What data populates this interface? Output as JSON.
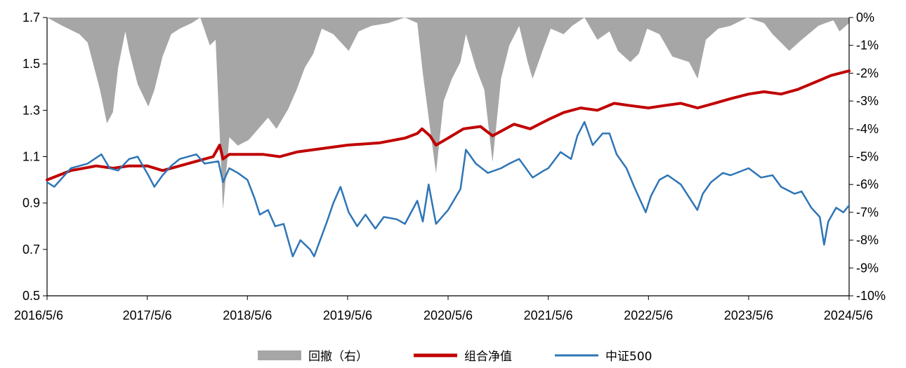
{
  "chart_data": {
    "type": "line",
    "title": "",
    "xlabel": "",
    "ylabel": "",
    "ylim": [
      0.5,
      1.7
    ],
    "y2lim": [
      -10,
      0
    ],
    "x_range": [
      "2016/5/6",
      "2024/5/6"
    ],
    "x_tick_labels": [
      "2016/5/6",
      "2017/5/6",
      "2018/5/6",
      "2019/5/6",
      "2020/5/6",
      "2021/5/6",
      "2022/5/6",
      "2023/5/6",
      "2024/5/6"
    ],
    "y_tick_labels": [
      "0.5",
      "0.7",
      "0.9",
      "1.1",
      "1.3",
      "1.5",
      "1.7"
    ],
    "y2_tick_labels": [
      "-10%",
      "-9%",
      "-8%",
      "-7%",
      "-6%",
      "-5%",
      "-4%",
      "-3%",
      "-2%",
      "-1%",
      "0%"
    ],
    "grid": false,
    "legend_position": "bottom",
    "series": [
      {
        "name": "回撤（右）",
        "type": "area",
        "axis": "right",
        "color": "#a6a6a6",
        "points": [
          [
            "2016/5/6",
            0
          ],
          [
            "2016/7/1",
            -0.3
          ],
          [
            "2016/9/1",
            -0.6
          ],
          [
            "2016/10/1",
            -0.9
          ],
          [
            "2016/11/15",
            -2.6
          ],
          [
            "2016/12/10",
            -3.8
          ],
          [
            "2017/1/1",
            -3.4
          ],
          [
            "2017/1/20",
            -1.8
          ],
          [
            "2017/2/15",
            -0.5
          ],
          [
            "2017/3/1",
            -1.2
          ],
          [
            "2017/4/1",
            -2.4
          ],
          [
            "2017/5/10",
            -3.2
          ],
          [
            "2017/6/1",
            -2.6
          ],
          [
            "2017/7/1",
            -1.4
          ],
          [
            "2017/8/1",
            -0.6
          ],
          [
            "2017/9/1",
            -0.4
          ],
          [
            "2017/10/15",
            -0.2
          ],
          [
            "2017/11/15",
            0
          ],
          [
            "2017/12/20",
            -1.0
          ],
          [
            "2018/1/10",
            -0.8
          ],
          [
            "2018/2/6",
            -6.9
          ],
          [
            "2018/3/1",
            -4.3
          ],
          [
            "2018/4/1",
            -4.6
          ],
          [
            "2018/5/10",
            -4.4
          ],
          [
            "2018/6/15",
            -4.0
          ],
          [
            "2018/7/20",
            -3.6
          ],
          [
            "2018/8/20",
            -4.0
          ],
          [
            "2018/10/1",
            -3.3
          ],
          [
            "2018/11/1",
            -2.6
          ],
          [
            "2018/12/1",
            -1.8
          ],
          [
            "2019/1/1",
            -1.3
          ],
          [
            "2019/2/1",
            -0.4
          ],
          [
            "2019/3/15",
            -0.6
          ],
          [
            "2019/5/10",
            -1.2
          ],
          [
            "2019/6/15",
            -0.5
          ],
          [
            "2019/8/1",
            -0.3
          ],
          [
            "2019/10/1",
            -0.2
          ],
          [
            "2019/12/1",
            0
          ],
          [
            "2020/1/15",
            -0.2
          ],
          [
            "2020/2/4",
            -2.0
          ],
          [
            "2020/3/23",
            -5.6
          ],
          [
            "2020/4/20",
            -3.0
          ],
          [
            "2020/5/20",
            -2.2
          ],
          [
            "2020/6/20",
            -1.6
          ],
          [
            "2020/7/10",
            -0.6
          ],
          [
            "2020/8/15",
            -1.8
          ],
          [
            "2020/9/15",
            -2.6
          ],
          [
            "2020/10/15",
            -5.2
          ],
          [
            "2020/11/15",
            -2.2
          ],
          [
            "2020/12/15",
            -1.0
          ],
          [
            "2021/1/20",
            -0.3
          ],
          [
            "2021/2/20",
            -1.6
          ],
          [
            "2021/3/10",
            -2.2
          ],
          [
            "2021/4/15",
            -1.2
          ],
          [
            "2021/5/15",
            -0.4
          ],
          [
            "2021/7/1",
            -0.6
          ],
          [
            "2021/8/1",
            -0.3
          ],
          [
            "2021/9/15",
            0
          ],
          [
            "2021/11/1",
            -0.8
          ],
          [
            "2021/12/15",
            -0.5
          ],
          [
            "2022/1/15",
            -1.2
          ],
          [
            "2022/3/1",
            -1.6
          ],
          [
            "2022/4/1",
            -1.3
          ],
          [
            "2022/5/1",
            -0.4
          ],
          [
            "2022/6/15",
            -0.6
          ],
          [
            "2022/8/1",
            -1.4
          ],
          [
            "2022/10/1",
            -1.6
          ],
          [
            "2022/11/1",
            -2.2
          ],
          [
            "2022/12/1",
            -0.8
          ],
          [
            "2023/1/15",
            -0.4
          ],
          [
            "2023/3/1",
            -0.3
          ],
          [
            "2023/5/1",
            0
          ],
          [
            "2023/7/1",
            -0.2
          ],
          [
            "2023/8/1",
            -0.6
          ],
          [
            "2023/10/1",
            -1.2
          ],
          [
            "2023/11/15",
            -0.8
          ],
          [
            "2024/1/15",
            -0.3
          ],
          [
            "2024/2/10",
            -0.2
          ],
          [
            "2024/3/10",
            -0.1
          ],
          [
            "2024/4/1",
            -0.5
          ],
          [
            "2024/5/6",
            -0.2
          ]
        ]
      },
      {
        "name": "组合净值",
        "type": "line",
        "axis": "left",
        "color": "#c00000",
        "points": [
          [
            "2016/5/6",
            1.0
          ],
          [
            "2016/8/1",
            1.04
          ],
          [
            "2016/11/1",
            1.06
          ],
          [
            "2017/1/1",
            1.05
          ],
          [
            "2017/3/1",
            1.06
          ],
          [
            "2017/5/6",
            1.06
          ],
          [
            "2017/7/1",
            1.04
          ],
          [
            "2017/9/1",
            1.06
          ],
          [
            "2017/11/1",
            1.08
          ],
          [
            "2018/1/1",
            1.1
          ],
          [
            "2018/1/25",
            1.15
          ],
          [
            "2018/2/6",
            1.09
          ],
          [
            "2018/3/1",
            1.11
          ],
          [
            "2018/5/6",
            1.11
          ],
          [
            "2018/7/1",
            1.11
          ],
          [
            "2018/9/1",
            1.1
          ],
          [
            "2018/11/1",
            1.12
          ],
          [
            "2019/1/1",
            1.13
          ],
          [
            "2019/5/6",
            1.15
          ],
          [
            "2019/9/1",
            1.16
          ],
          [
            "2019/12/1",
            1.18
          ],
          [
            "2020/1/15",
            1.2
          ],
          [
            "2020/2/1",
            1.22
          ],
          [
            "2020/3/1",
            1.19
          ],
          [
            "2020/3/23",
            1.15
          ],
          [
            "2020/5/6",
            1.18
          ],
          [
            "2020/7/1",
            1.22
          ],
          [
            "2020/9/1",
            1.23
          ],
          [
            "2020/10/15",
            1.19
          ],
          [
            "2021/1/1",
            1.24
          ],
          [
            "2021/3/1",
            1.22
          ],
          [
            "2021/5/6",
            1.26
          ],
          [
            "2021/7/1",
            1.29
          ],
          [
            "2021/9/1",
            1.31
          ],
          [
            "2021/11/1",
            1.3
          ],
          [
            "2022/1/1",
            1.33
          ],
          [
            "2022/3/1",
            1.32
          ],
          [
            "2022/5/6",
            1.31
          ],
          [
            "2022/7/1",
            1.32
          ],
          [
            "2022/9/1",
            1.33
          ],
          [
            "2022/11/1",
            1.31
          ],
          [
            "2023/1/1",
            1.33
          ],
          [
            "2023/3/1",
            1.35
          ],
          [
            "2023/5/6",
            1.37
          ],
          [
            "2023/7/1",
            1.38
          ],
          [
            "2023/9/1",
            1.37
          ],
          [
            "2023/11/1",
            1.39
          ],
          [
            "2024/1/1",
            1.42
          ],
          [
            "2024/3/1",
            1.45
          ],
          [
            "2024/5/6",
            1.47
          ]
        ]
      },
      {
        "name": "中证500",
        "type": "line",
        "axis": "left",
        "color": "#2e75b6",
        "points": [
          [
            "2016/5/6",
            0.99
          ],
          [
            "2016/6/1",
            0.97
          ],
          [
            "2016/8/1",
            1.05
          ],
          [
            "2016/10/1",
            1.07
          ],
          [
            "2016/11/20",
            1.11
          ],
          [
            "2016/12/20",
            1.05
          ],
          [
            "2017/1/20",
            1.04
          ],
          [
            "2017/3/1",
            1.09
          ],
          [
            "2017/4/1",
            1.1
          ],
          [
            "2017/5/10",
            1.02
          ],
          [
            "2017/6/1",
            0.97
          ],
          [
            "2017/7/1",
            1.02
          ],
          [
            "2017/8/1",
            1.06
          ],
          [
            "2017/9/1",
            1.09
          ],
          [
            "2017/11/1",
            1.11
          ],
          [
            "2017/12/1",
            1.07
          ],
          [
            "2018/1/20",
            1.08
          ],
          [
            "2018/2/6",
            0.99
          ],
          [
            "2018/3/1",
            1.05
          ],
          [
            "2018/4/1",
            1.03
          ],
          [
            "2018/5/6",
            1.0
          ],
          [
            "2018/6/1",
            0.92
          ],
          [
            "2018/6/20",
            0.85
          ],
          [
            "2018/7/20",
            0.87
          ],
          [
            "2018/8/15",
            0.8
          ],
          [
            "2018/9/15",
            0.81
          ],
          [
            "2018/10/18",
            0.67
          ],
          [
            "2018/11/15",
            0.74
          ],
          [
            "2018/12/20",
            0.7
          ],
          [
            "2019/1/4",
            0.67
          ],
          [
            "2019/2/20",
            0.82
          ],
          [
            "2019/3/15",
            0.9
          ],
          [
            "2019/4/10",
            0.97
          ],
          [
            "2019/5/10",
            0.86
          ],
          [
            "2019/6/10",
            0.8
          ],
          [
            "2019/7/10",
            0.85
          ],
          [
            "2019/8/15",
            0.79
          ],
          [
            "2019/9/15",
            0.84
          ],
          [
            "2019/11/1",
            0.83
          ],
          [
            "2019/12/1",
            0.81
          ],
          [
            "2020/1/15",
            0.91
          ],
          [
            "2020/2/4",
            0.82
          ],
          [
            "2020/2/25",
            0.98
          ],
          [
            "2020/3/23",
            0.81
          ],
          [
            "2020/5/6",
            0.87
          ],
          [
            "2020/6/20",
            0.96
          ],
          [
            "2020/7/10",
            1.13
          ],
          [
            "2020/8/15",
            1.07
          ],
          [
            "2020/9/28",
            1.03
          ],
          [
            "2020/11/15",
            1.05
          ],
          [
            "2020/12/15",
            1.07
          ],
          [
            "2021/1/20",
            1.09
          ],
          [
            "2021/3/10",
            1.01
          ],
          [
            "2021/4/20",
            1.04
          ],
          [
            "2021/5/6",
            1.05
          ],
          [
            "2021/6/20",
            1.12
          ],
          [
            "2021/7/28",
            1.09
          ],
          [
            "2021/8/20",
            1.19
          ],
          [
            "2021/9/15",
            1.25
          ],
          [
            "2021/10/15",
            1.15
          ],
          [
            "2021/11/20",
            1.2
          ],
          [
            "2021/12/15",
            1.2
          ],
          [
            "2022/1/10",
            1.11
          ],
          [
            "2022/2/15",
            1.05
          ],
          [
            "2022/3/15",
            0.97
          ],
          [
            "2022/4/26",
            0.86
          ],
          [
            "2022/5/15",
            0.93
          ],
          [
            "2022/6/15",
            1.0
          ],
          [
            "2022/7/15",
            1.02
          ],
          [
            "2022/9/1",
            0.98
          ],
          [
            "2022/10/31",
            0.87
          ],
          [
            "2022/11/20",
            0.94
          ],
          [
            "2022/12/20",
            0.99
          ],
          [
            "2023/2/1",
            1.03
          ],
          [
            "2023/3/1",
            1.02
          ],
          [
            "2023/5/6",
            1.05
          ],
          [
            "2023/6/20",
            1.01
          ],
          [
            "2023/8/1",
            1.02
          ],
          [
            "2023/9/1",
            0.97
          ],
          [
            "2023/10/20",
            0.94
          ],
          [
            "2023/11/15",
            0.95
          ],
          [
            "2023/12/20",
            0.88
          ],
          [
            "2024/1/20",
            0.84
          ],
          [
            "2024/2/5",
            0.72
          ],
          [
            "2024/2/20",
            0.82
          ],
          [
            "2024/3/20",
            0.88
          ],
          [
            "2024/4/15",
            0.86
          ],
          [
            "2024/5/6",
            0.89
          ]
        ]
      }
    ]
  }
}
